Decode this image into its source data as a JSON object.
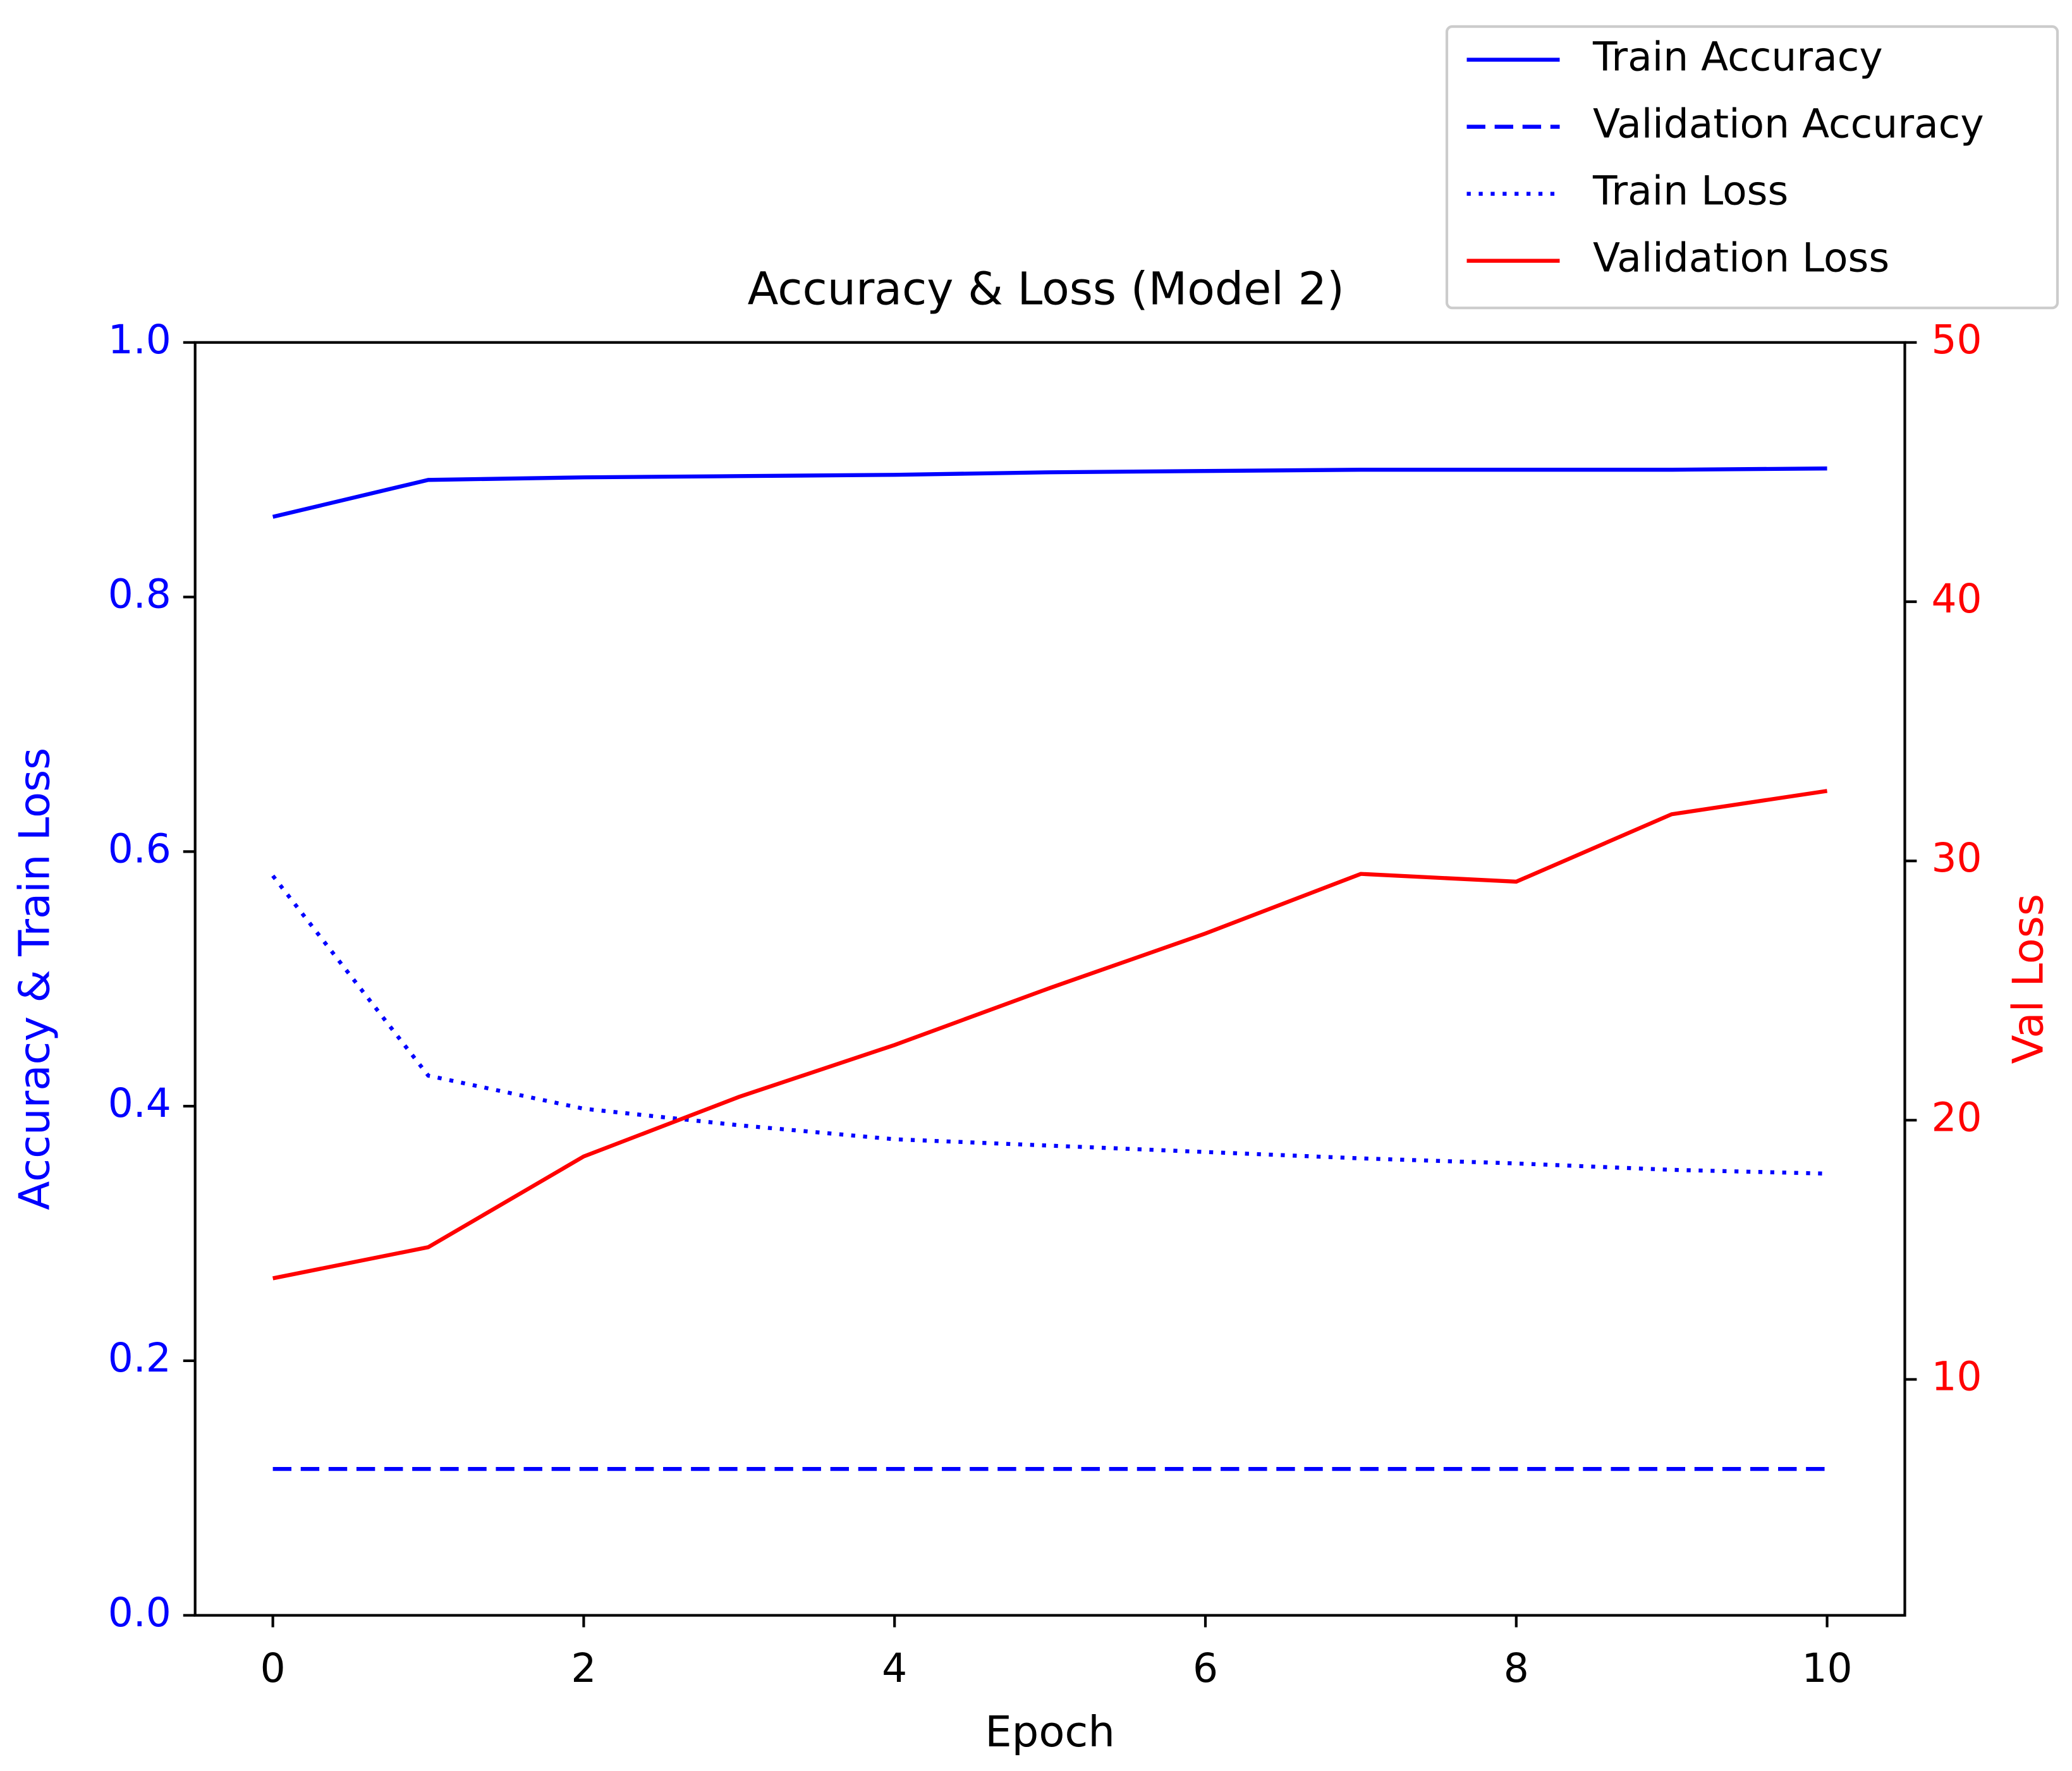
{
  "chart_data": {
    "type": "line",
    "title": "Accuracy & Loss (Model 2)",
    "xlabel": "Epoch",
    "ylabel": "Accuracy & Train Loss",
    "y2label": "Val Loss",
    "y_axis_color": "#0000ff",
    "y2_axis_color": "#ff0000",
    "x": [
      0,
      1,
      2,
      3,
      4,
      5,
      6,
      7,
      8,
      9,
      10
    ],
    "xlim": [
      -0.5,
      10.5
    ],
    "xticks": [
      0,
      2,
      4,
      6,
      8,
      10
    ],
    "ylim": [
      0,
      1
    ],
    "yticks": [
      {
        "value": 0,
        "label": "0.0"
      },
      0.2,
      0.4,
      0.6,
      0.8,
      {
        "value": 1,
        "label": "1.0"
      }
    ],
    "y2lim": [
      0.9,
      50
    ],
    "y2ticks": [
      10,
      20,
      30,
      40,
      50
    ],
    "legend": "upper right",
    "series": [
      {
        "name": "Train Accuracy",
        "color": "#0000ff",
        "linestyle": "solid",
        "values": [
          0.863,
          0.892,
          0.894,
          0.895,
          0.896,
          0.898,
          0.899,
          0.9,
          0.9,
          0.9,
          0.901
        ]
      },
      {
        "name": "Validation Accuracy",
        "color": "#0000ff",
        "linestyle": "dashed",
        "values": [
          0.115,
          0.115,
          0.115,
          0.115,
          0.115,
          0.115,
          0.115,
          0.115,
          0.115,
          0.115,
          0.115
        ]
      },
      {
        "name": "Train Loss",
        "color": "#0000ff",
        "linestyle": "dotted",
        "values": [
          0.581,
          0.424,
          0.398,
          0.385,
          0.374,
          0.369,
          0.364,
          0.359,
          0.355,
          0.35,
          0.347
        ]
      },
      {
        "name": "Validation Loss",
        "color": "#ff0000",
        "linestyle": "solid",
        "axis": "y2",
        "values": [
          13.9,
          15.1,
          18.6,
          20.9,
          22.9,
          25.1,
          27.2,
          29.5,
          29.2,
          31.8,
          32.7
        ]
      }
    ]
  }
}
